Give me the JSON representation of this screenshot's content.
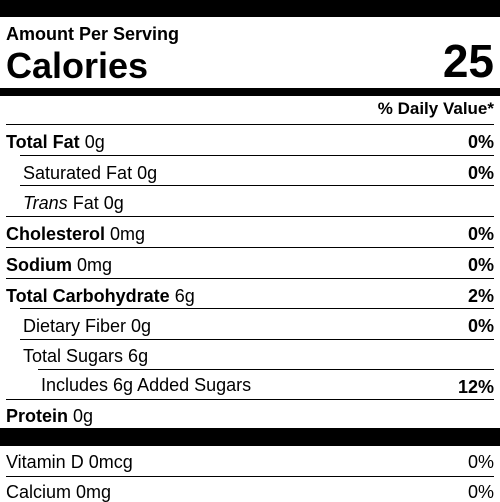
{
  "header": {
    "amount_per_serving": "Amount Per Serving",
    "calories_label": "Calories",
    "calories_value": "25",
    "daily_value_header": "% Daily Value*"
  },
  "nutrients": {
    "total_fat": {
      "label": "Total Fat",
      "amount": "0g",
      "dv": "0%"
    },
    "saturated_fat": {
      "label": "Saturated Fat 0g",
      "dv": "0%"
    },
    "trans_fat": {
      "label_italic": "Trans",
      "label_rest": "Fat 0g"
    },
    "cholesterol": {
      "label": "Cholesterol",
      "amount": "0mg",
      "dv": "0%"
    },
    "sodium": {
      "label": "Sodium",
      "amount": "0mg",
      "dv": "0%"
    },
    "total_carbohydrate": {
      "label": "Total Carbohydrate",
      "amount": "6g",
      "dv": "2%"
    },
    "dietary_fiber": {
      "label": "Dietary Fiber 0g",
      "dv": "0%"
    },
    "total_sugars": {
      "label": "Total Sugars 6g"
    },
    "added_sugars": {
      "label": "Includes 6g Added Sugars",
      "dv": "12%"
    },
    "protein": {
      "label": "Protein",
      "amount": "0g"
    }
  },
  "vitamins": {
    "vitamin_d": {
      "label": "Vitamin D 0mcg",
      "dv": "0%"
    },
    "calcium": {
      "label": "Calcium 0mg",
      "dv": "0%"
    }
  },
  "colors": {
    "ink": "#000000",
    "background": "#ffffff"
  }
}
